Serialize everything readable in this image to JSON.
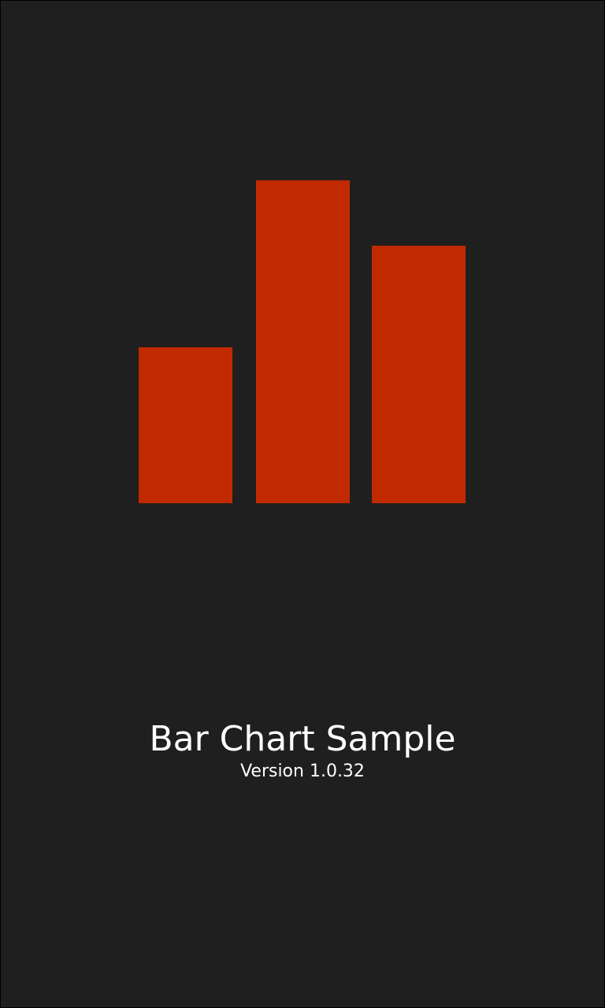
{
  "app": {
    "title": "Bar Chart Sample",
    "version": "Version 1.0.32"
  },
  "logo": {
    "icon": "bar-chart-icon",
    "background_color": "#1f1f1f",
    "bar_color": "#c12a00"
  },
  "chart_data": {
    "type": "bar",
    "categories": [
      "",
      "",
      ""
    ],
    "values": [
      198,
      410,
      327
    ],
    "ylim": [
      0,
      410
    ],
    "grid": false,
    "legend": "none"
  }
}
